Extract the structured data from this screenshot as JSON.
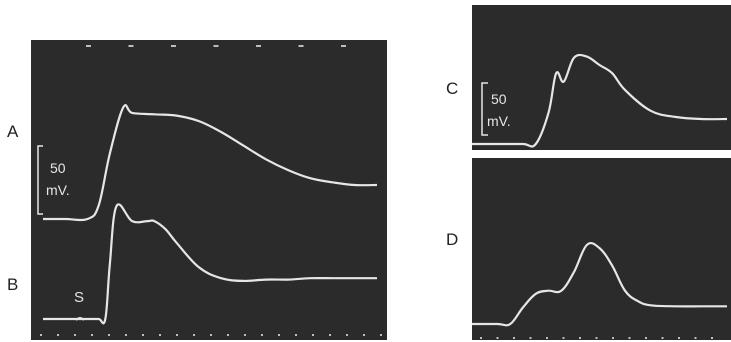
{
  "colors": {
    "page_background": "#ffffff",
    "oscilloscope_background": "#2b2b2b",
    "trace": "#e6e6e6",
    "time_marks": "#bdbdbd",
    "panel_letters": "#222222"
  },
  "panels": [
    {
      "id": "A",
      "label": "A"
    },
    {
      "id": "B",
      "label": "B"
    },
    {
      "id": "C",
      "label": "C"
    },
    {
      "id": "D",
      "label": "D"
    }
  ],
  "stimulus_marker": "S",
  "scale_bars": {
    "left": {
      "value": "50",
      "unit": "mV."
    },
    "right": {
      "value": "50",
      "unit": "mV."
    }
  },
  "chart_data": [
    {
      "type": "line",
      "title": "",
      "panel": "A",
      "xlabel": "",
      "ylabel": "",
      "y_units": "mV",
      "scale_bar_mV": 50,
      "baseline_mV": 0,
      "series": [
        {
          "x": [
            0,
            1,
            2,
            2.5,
            3,
            3.6,
            4,
            5,
            6,
            7,
            8,
            9,
            10,
            11,
            12,
            13,
            14,
            15
          ],
          "values": [
            0,
            0,
            0,
            10,
            48,
            82,
            78,
            77,
            76,
            72,
            64,
            54,
            44,
            36,
            30,
            27,
            25,
            25
          ]
        }
      ]
    },
    {
      "type": "line",
      "title": "",
      "panel": "B",
      "xlabel": "",
      "ylabel": "",
      "y_units": "mV",
      "scale_bar_mV": 50,
      "baseline_mV": 0,
      "series": [
        {
          "x": [
            0,
            1,
            2,
            2.5,
            2.8,
            3,
            3.3,
            4,
            4.7,
            5,
            5.5,
            6,
            7,
            8,
            9,
            10,
            11,
            12,
            13,
            14,
            15
          ],
          "values": [
            0,
            0,
            0,
            0,
            0,
            40,
            83,
            72,
            72,
            72,
            66,
            56,
            38,
            30,
            28,
            29,
            29,
            30,
            30,
            30,
            30
          ]
        }
      ]
    },
    {
      "type": "line",
      "title": "",
      "panel": "C",
      "xlabel": "",
      "ylabel": "",
      "y_units": "mV",
      "scale_bar_mV": 50,
      "baseline_mV": 0,
      "series": [
        {
          "x": [
            0,
            1,
            2,
            2.5,
            3,
            3.3,
            3.6,
            4,
            4.5,
            5,
            5.5,
            6,
            7,
            8,
            9,
            10
          ],
          "values": [
            0,
            0,
            0,
            0,
            30,
            68,
            60,
            83,
            84,
            76,
            68,
            52,
            32,
            26,
            24,
            24
          ]
        }
      ]
    },
    {
      "type": "line",
      "title": "",
      "panel": "D",
      "xlabel": "",
      "ylabel": "",
      "y_units": "mV",
      "scale_bar_mV": 50,
      "baseline_mV": 0,
      "series": [
        {
          "x": [
            0,
            1,
            1.5,
            2,
            2.5,
            3,
            3.5,
            4,
            4.5,
            5,
            5.5,
            6,
            6.5,
            7,
            8,
            9,
            10
          ],
          "values": [
            0,
            0,
            0,
            16,
            29,
            32,
            32,
            50,
            76,
            73,
            56,
            32,
            22,
            18,
            17,
            17,
            17
          ]
        }
      ]
    }
  ]
}
